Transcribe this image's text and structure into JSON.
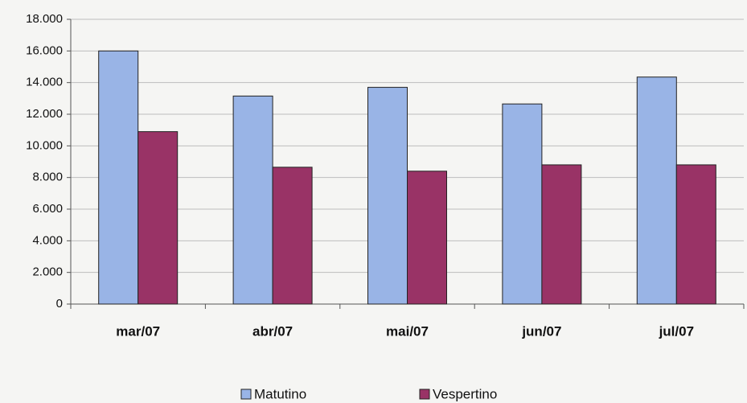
{
  "chart_data": {
    "type": "bar",
    "categories": [
      "mar/07",
      "abr/07",
      "mai/07",
      "jun/07",
      "jul/07"
    ],
    "series": [
      {
        "name": "Matutino",
        "color": "#99b4e6",
        "values": [
          16000,
          13150,
          13700,
          12650,
          14350
        ]
      },
      {
        "name": "Vespertino",
        "color": "#993366",
        "values": [
          10900,
          8650,
          8400,
          8800,
          8800
        ]
      }
    ],
    "ylim": [
      0,
      18000
    ],
    "yticks": [
      0,
      {
        "value": 2000,
        "label": "2.000"
      },
      {
        "value": 4000,
        "label": "4.000"
      },
      {
        "value": 6000,
        "label": "6.000"
      },
      {
        "value": 8000,
        "label": "8.000"
      },
      {
        "value": 10000,
        "label": "10.000"
      },
      {
        "value": 12000,
        "label": "12.000"
      },
      {
        "value": 14000,
        "label": "14.000"
      },
      {
        "value": 16000,
        "label": "16.000"
      },
      {
        "value": 18000,
        "label": "18.000"
      }
    ],
    "grid": true,
    "legend": "bottom"
  }
}
